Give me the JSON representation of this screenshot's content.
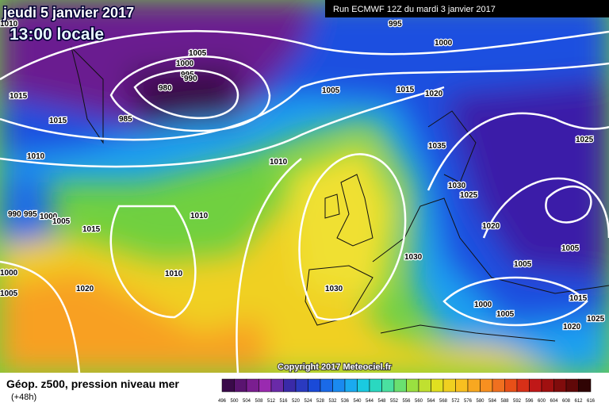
{
  "header": {
    "date": "jeudi 5 janvier 2017",
    "time": "13:00 locale",
    "run": "Run ECMWF 12Z du mardi 3 janvier 2017"
  },
  "copyright": "Copyright 2017 Meteociel.fr",
  "isobar_labels": [
    "1010",
    "995",
    "1000",
    "1005",
    "1000",
    "995",
    "990",
    "980",
    "985",
    "1015",
    "1015",
    "1005",
    "1015",
    "1020",
    "1035",
    "1010",
    "1030",
    "1025",
    "1025",
    "1010",
    "990",
    "995",
    "1000",
    "1005",
    "1010",
    "1015",
    "1020",
    "1000",
    "1005",
    "1010",
    "1020",
    "1030",
    "1030",
    "1005",
    "1005",
    "1015",
    "1000",
    "1005",
    "1025",
    "1020"
  ],
  "legend": {
    "title": "Géop. z500, pression niveau mer",
    "lead": "(+48h)",
    "scale_labels": [
      496,
      500,
      504,
      508,
      512,
      516,
      520,
      524,
      528,
      532,
      536,
      540,
      544,
      548,
      552,
      556,
      560,
      564,
      568,
      572,
      576,
      580,
      584,
      588,
      592,
      596,
      600,
      604,
      608,
      612,
      616
    ],
    "scale_colors": [
      "#3a0a4a",
      "#5a1470",
      "#7a1e90",
      "#9a2ab0",
      "#6a2aa8",
      "#3a2aa8",
      "#2a3ac0",
      "#1a4ad8",
      "#1a6ae8",
      "#1a8af0",
      "#1aaaf0",
      "#1acae0",
      "#2ad8c0",
      "#4ae0a0",
      "#6ae070",
      "#9ae040",
      "#c0e030",
      "#e0e020",
      "#f0d020",
      "#f8c020",
      "#f8a820",
      "#f89020",
      "#f07020",
      "#e85018",
      "#d83018",
      "#c01818",
      "#a01010",
      "#800c0c",
      "#600808",
      "#300404"
    ]
  }
}
